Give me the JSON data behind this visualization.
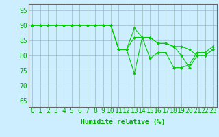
{
  "x": [
    0,
    1,
    2,
    3,
    4,
    5,
    6,
    7,
    8,
    9,
    10,
    11,
    12,
    13,
    14,
    15,
    16,
    17,
    18,
    19,
    20,
    21,
    22,
    23
  ],
  "series": [
    [
      90,
      90,
      90,
      90,
      90,
      90,
      90,
      90,
      90,
      90,
      90,
      82,
      82,
      74,
      86,
      79,
      81,
      81,
      76,
      76,
      77,
      81,
      81,
      83
    ],
    [
      90,
      90,
      90,
      90,
      90,
      90,
      90,
      90,
      90,
      90,
      90,
      82,
      82,
      89,
      86,
      86,
      84,
      84,
      83,
      83,
      82,
      80,
      80,
      82
    ],
    [
      90,
      90,
      90,
      90,
      90,
      90,
      90,
      90,
      90,
      90,
      90,
      82,
      82,
      86,
      86,
      86,
      84,
      84,
      83,
      80,
      76,
      80,
      80,
      82
    ]
  ],
  "line_color": "#00cc00",
  "marker": "D",
  "marker_size": 2.0,
  "xlabel": "Humidité relative (%)",
  "ylabel_ticks": [
    65,
    70,
    75,
    80,
    85,
    90,
    95
  ],
  "xlim": [
    -0.5,
    23.5
  ],
  "ylim": [
    63,
    97
  ],
  "background_color": "#cceeff",
  "grid_color": "#99bbbb",
  "text_color": "#00aa00",
  "xlabel_fontsize": 7,
  "tick_fontsize": 7,
  "linewidth": 0.8
}
